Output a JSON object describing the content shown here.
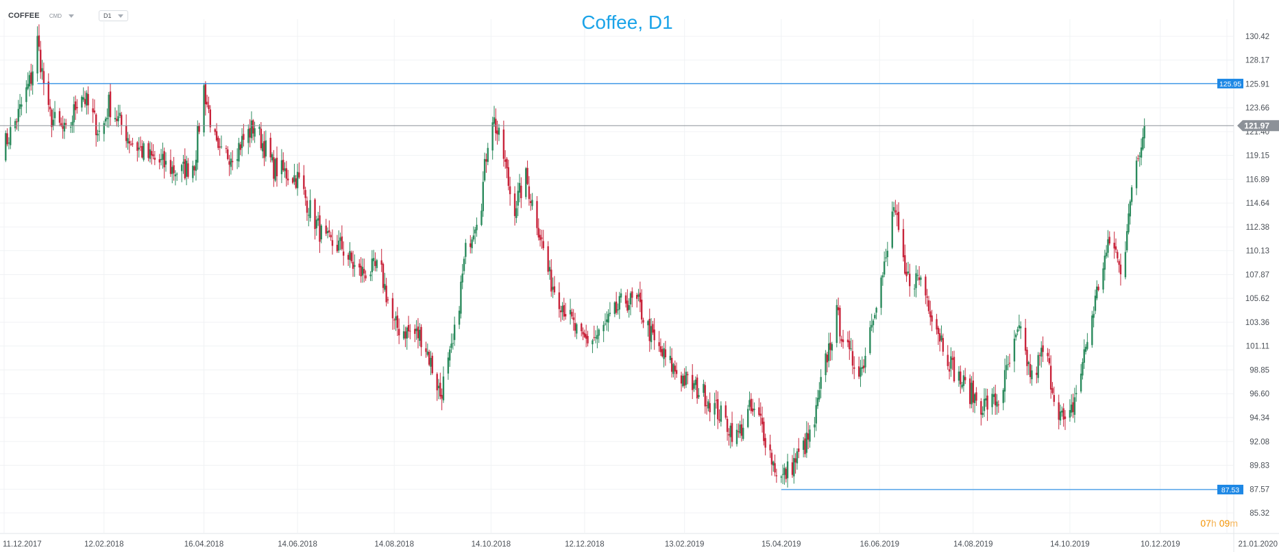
{
  "toolbar": {
    "symbol": "COFFEE",
    "exchange": "CMD",
    "timeframe": "D1"
  },
  "countdown": {
    "h": "07",
    "h_unit": "h",
    "m": "09",
    "m_unit": "m"
  },
  "colors": {
    "up": "#2a8a5c",
    "down": "#c8233a",
    "level_line": "#1e88e5",
    "current_price": "#8c9198",
    "title": "#1aa3e8",
    "countdown": "#f39200"
  },
  "chart_data": {
    "type": "candlestick",
    "title": "Coffee, D1",
    "x_range": [
      "2017-12-11",
      "2020-01-21"
    ],
    "ylim": [
      85.32,
      130.42
    ],
    "y_ticks": [
      "130.42",
      "128.17",
      "125.91",
      "123.66",
      "121.40",
      "119.15",
      "116.89",
      "114.64",
      "112.38",
      "110.13",
      "107.87",
      "105.62",
      "103.36",
      "101.11",
      "98.85",
      "96.60",
      "94.34",
      "92.08",
      "89.83",
      "87.57",
      "85.32"
    ],
    "x_ticks": [
      "11.12.2017",
      "12.02.2018",
      "16.04.2018",
      "14.06.2018",
      "14.08.2018",
      "14.10.2018",
      "12.12.2018",
      "13.02.2019",
      "15.04.2019",
      "16.06.2019",
      "14.08.2019",
      "14.10.2019",
      "10.12.2019",
      "21.01.2020"
    ],
    "x_tick_dates": [
      "2017-12-11",
      "2018-02-12",
      "2018-04-16",
      "2018-06-14",
      "2018-08-14",
      "2018-10-14",
      "2018-12-12",
      "2019-02-13",
      "2019-04-15",
      "2019-06-16",
      "2019-08-14",
      "2019-10-14",
      "2019-12-10",
      "2020-01-21"
    ],
    "close_path": [
      [
        "2017-12-11",
        120.0
      ],
      [
        "2017-12-20",
        123.0
      ],
      [
        "2017-12-28",
        126.5
      ],
      [
        "2018-01-01",
        130.0
      ],
      [
        "2018-01-08",
        123.0
      ],
      [
        "2018-01-20",
        121.0
      ],
      [
        "2018-01-28",
        125.5
      ],
      [
        "2018-02-10",
        121.0
      ],
      [
        "2018-02-15",
        124.0
      ],
      [
        "2018-03-01",
        120.5
      ],
      [
        "2018-03-12",
        119.0
      ],
      [
        "2018-04-01",
        117.5
      ],
      [
        "2018-04-10",
        118.5
      ],
      [
        "2018-04-16",
        125.5
      ],
      [
        "2018-04-25",
        119.0
      ],
      [
        "2018-05-05",
        119.5
      ],
      [
        "2018-05-18",
        122.0
      ],
      [
        "2018-05-30",
        118.0
      ],
      [
        "2018-06-14",
        117.0
      ],
      [
        "2018-06-22",
        114.0
      ],
      [
        "2018-07-01",
        111.0
      ],
      [
        "2018-07-12",
        110.5
      ],
      [
        "2018-07-22",
        108.0
      ],
      [
        "2018-08-05",
        108.5
      ],
      [
        "2018-08-14",
        103.0
      ],
      [
        "2018-08-22",
        102.5
      ],
      [
        "2018-09-01",
        102.0
      ],
      [
        "2018-09-12",
        96.5
      ],
      [
        "2018-09-20",
        101.0
      ],
      [
        "2018-09-28",
        110.0
      ],
      [
        "2018-10-08",
        115.0
      ],
      [
        "2018-10-14",
        123.5
      ],
      [
        "2018-10-22",
        119.0
      ],
      [
        "2018-10-28",
        114.0
      ],
      [
        "2018-11-05",
        117.0
      ],
      [
        "2018-11-12",
        113.0
      ],
      [
        "2018-11-20",
        107.5
      ],
      [
        "2018-11-30",
        104.5
      ],
      [
        "2018-12-10",
        101.5
      ],
      [
        "2018-12-20",
        102.0
      ],
      [
        "2018-12-28",
        103.5
      ],
      [
        "2019-01-06",
        105.5
      ],
      [
        "2019-01-15",
        105.0
      ],
      [
        "2019-01-26",
        101.0
      ],
      [
        "2019-02-06",
        99.0
      ],
      [
        "2019-02-16",
        97.5
      ],
      [
        "2019-02-26",
        96.5
      ],
      [
        "2019-03-08",
        94.5
      ],
      [
        "2019-03-18",
        92.5
      ],
      [
        "2019-03-26",
        95.0
      ],
      [
        "2019-04-02",
        94.0
      ],
      [
        "2019-04-10",
        90.0
      ],
      [
        "2019-04-15",
        88.5
      ],
      [
        "2019-04-25",
        90.5
      ],
      [
        "2019-05-05",
        93.0
      ],
      [
        "2019-05-12",
        99.0
      ],
      [
        "2019-05-20",
        104.0
      ],
      [
        "2019-05-28",
        100.0
      ],
      [
        "2019-06-05",
        99.0
      ],
      [
        "2019-06-12",
        104.5
      ],
      [
        "2019-06-20",
        109.0
      ],
      [
        "2019-06-25",
        114.5
      ],
      [
        "2019-07-02",
        107.5
      ],
      [
        "2019-07-12",
        107.5
      ],
      [
        "2019-07-22",
        103.0
      ],
      [
        "2019-08-01",
        99.0
      ],
      [
        "2019-08-10",
        97.0
      ],
      [
        "2019-08-20",
        95.5
      ],
      [
        "2019-08-30",
        96.0
      ],
      [
        "2019-09-06",
        99.5
      ],
      [
        "2019-09-12",
        102.5
      ],
      [
        "2019-09-20",
        98.0
      ],
      [
        "2019-09-28",
        101.0
      ],
      [
        "2019-10-04",
        96.5
      ],
      [
        "2019-10-12",
        93.0
      ],
      [
        "2019-10-20",
        98.0
      ],
      [
        "2019-10-28",
        104.0
      ],
      [
        "2019-11-04",
        109.0
      ],
      [
        "2019-11-10",
        111.5
      ],
      [
        "2019-11-16",
        107.0
      ],
      [
        "2019-11-20",
        114.5
      ],
      [
        "2019-11-26",
        118.5
      ],
      [
        "2019-11-30",
        121.97
      ]
    ],
    "annotations": [
      {
        "label": "125.95",
        "value": 125.95,
        "from": "2018-01-01"
      },
      {
        "label": "87.53",
        "value": 87.53,
        "from": "2019-04-15"
      }
    ],
    "current_price": {
      "label": "121.97",
      "value": 121.97
    },
    "grid": true,
    "legend": "none"
  }
}
